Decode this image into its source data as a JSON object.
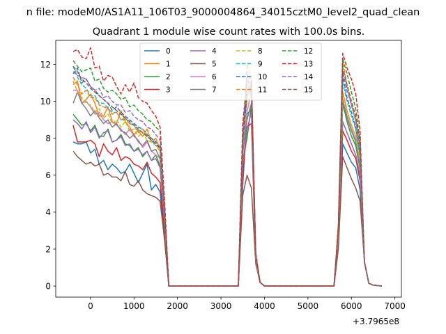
{
  "chart_data": {
    "type": "line",
    "suptitle": "n file: modeM0/AS1A11_106T03_9000004864_34015cztM0_level2_quad_clean",
    "title": "Quadrant 1 module wise count rates with 100.0s bins.",
    "xlabel": "",
    "ylabel": "",
    "offset_label": "+3.7965e8",
    "xlim": [
      -800,
      7150
    ],
    "ylim": [
      -0.6,
      13.3
    ],
    "xticks": [
      0,
      1000,
      2000,
      3000,
      4000,
      5000,
      6000,
      7000
    ],
    "xtick_labels": [
      "0",
      "1000",
      "2000",
      "3000",
      "4000",
      "5000",
      "6000",
      "7000"
    ],
    "yticks": [
      0,
      2,
      4,
      6,
      8,
      10,
      12
    ],
    "ytick_labels": [
      "0",
      "2",
      "4",
      "6",
      "8",
      "10",
      "12"
    ],
    "grid": false,
    "legend_position": "top-center",
    "legend_ncol": 4,
    "segments": [
      {
        "x_start": -400,
        "x_end": 1600,
        "step": 100
      },
      {
        "x_start": 3500,
        "x_end": 3800,
        "step": 100
      },
      {
        "x_start": 5700,
        "x_end": 6200,
        "step": 100
      }
    ],
    "zero_stretches": [
      [
        1800,
        3400
      ],
      [
        4000,
        5600
      ]
    ],
    "tail": {
      "x": [
        6400,
        6700
      ],
      "y": [
        0.1,
        0.0
      ]
    },
    "series": [
      {
        "name": "0",
        "color": "#1f77b4",
        "dashed": false,
        "seg1": [
          7.8,
          7.7,
          7.7,
          7.8,
          7.2,
          7.4,
          6.6,
          6.8,
          6.3,
          6.6,
          6.4,
          6.1,
          6.2,
          6.6,
          6.1,
          5.6,
          6.1,
          6.6,
          5.2,
          5.5,
          5.1
        ],
        "seg2": [
          5.4,
          9.3,
          9.6,
          1.3
        ],
        "seg3": [
          2.2,
          7.7,
          7.2,
          6.7,
          6.4,
          5.2
        ]
      },
      {
        "name": "1",
        "color": "#ff7f0e",
        "dashed": false,
        "seg1": [
          10.9,
          11.1,
          9.9,
          10.1,
          10.4,
          9.9,
          9.2,
          9.2,
          9.7,
          8.9,
          8.8,
          9.5,
          8.9,
          8.6,
          8.2,
          8.4,
          8.1,
          8.5,
          7.8,
          8.0,
          7.4
        ],
        "seg2": [
          7.6,
          10.2,
          10.8,
          1.5
        ],
        "seg3": [
          3.0,
          10.5,
          9.5,
          8.7,
          8.1,
          6.6
        ]
      },
      {
        "name": "2",
        "color": "#2ca02c",
        "dashed": false,
        "seg1": [
          9.3,
          9.0,
          8.7,
          8.8,
          8.4,
          8.7,
          8.1,
          8.1,
          8.5,
          7.8,
          7.9,
          8.2,
          7.7,
          7.6,
          7.3,
          7.5,
          7.0,
          7.3,
          6.8,
          7.1,
          6.5
        ],
        "seg2": [
          6.8,
          8.0,
          9.8,
          1.4
        ],
        "seg3": [
          2.6,
          9.9,
          8.9,
          8.1,
          7.6,
          6.3
        ]
      },
      {
        "name": "3",
        "color": "#d62728",
        "dashed": false,
        "seg1": [
          8.7,
          7.8,
          7.8,
          7.8,
          7.9,
          7.7,
          7.0,
          7.7,
          7.3,
          7.1,
          7.5,
          6.8,
          7.0,
          6.9,
          6.6,
          6.5,
          6.3,
          6.7,
          6.1,
          5.9,
          5.6
        ],
        "seg2": [
          6.0,
          8.6,
          8.8,
          1.3
        ],
        "seg3": [
          2.3,
          8.4,
          7.9,
          7.3,
          6.9,
          5.7
        ]
      },
      {
        "name": "4",
        "color": "#9467bd",
        "dashed": false,
        "seg1": [
          9.0,
          8.8,
          8.5,
          8.9,
          8.3,
          8.6,
          8.0,
          8.3,
          8.4,
          7.8,
          7.9,
          8.1,
          7.6,
          7.7,
          7.3,
          7.4,
          7.1,
          7.3,
          6.8,
          6.9,
          6.4
        ],
        "seg2": [
          6.6,
          8.5,
          9.4,
          1.3
        ],
        "seg3": [
          2.5,
          8.9,
          8.3,
          7.7,
          7.1,
          6.0
        ]
      },
      {
        "name": "5",
        "color": "#8c564b",
        "dashed": false,
        "seg1": [
          7.3,
          7.0,
          6.8,
          6.6,
          6.7,
          6.5,
          6.6,
          6.0,
          6.1,
          5.9,
          5.9,
          5.7,
          6.2,
          5.5,
          5.4,
          5.7,
          5.2,
          5.0,
          4.9,
          4.8,
          4.6
        ],
        "seg2": [
          4.9,
          6.0,
          5.3,
          1.2
        ],
        "seg3": [
          2.0,
          7.0,
          6.4,
          5.8,
          5.3,
          4.6
        ]
      },
      {
        "name": "6",
        "color": "#e377c2",
        "dashed": false,
        "seg1": [
          10.6,
          10.6,
          9.9,
          10.0,
          9.7,
          9.3,
          9.4,
          9.0,
          8.8,
          8.9,
          8.7,
          8.5,
          8.2,
          8.5,
          8.1,
          7.9,
          7.5,
          7.8,
          7.3,
          7.1,
          6.9
        ],
        "seg2": [
          7.3,
          9.4,
          10.6,
          1.5
        ],
        "seg3": [
          2.8,
          10.1,
          9.2,
          8.5,
          7.9,
          6.5
        ]
      },
      {
        "name": "7",
        "color": "#7f7f7f",
        "dashed": false,
        "seg1": [
          9.9,
          10.5,
          9.9,
          9.6,
          9.2,
          9.5,
          9.1,
          8.8,
          9.0,
          8.6,
          8.8,
          8.4,
          8.3,
          8.0,
          8.2,
          7.8,
          7.6,
          7.9,
          7.3,
          7.4,
          6.9
        ],
        "seg2": [
          7.2,
          9.0,
          9.9,
          1.4
        ],
        "seg3": [
          2.7,
          10.0,
          9.1,
          8.4,
          7.8,
          6.4
        ]
      },
      {
        "name": "8",
        "color": "#bcbd22",
        "dashed": true,
        "seg1": [
          11.1,
          10.5,
          10.2,
          9.9,
          9.8,
          9.4,
          9.6,
          9.1,
          9.3,
          8.8,
          9.0,
          8.6,
          8.9,
          8.4,
          8.5,
          8.1,
          8.3,
          7.9,
          7.8,
          7.6,
          7.3
        ],
        "seg2": [
          7.5,
          10.0,
          10.3,
          1.5
        ],
        "seg3": [
          2.9,
          10.3,
          9.4,
          8.7,
          8.1,
          6.7
        ]
      },
      {
        "name": "9",
        "color": "#17becf",
        "dashed": true,
        "seg1": [
          11.9,
          11.3,
          10.9,
          10.7,
          10.3,
          10.3,
          9.9,
          9.9,
          9.6,
          9.4,
          9.4,
          9.0,
          9.1,
          8.8,
          8.7,
          8.4,
          8.5,
          8.1,
          7.9,
          7.6,
          7.5
        ],
        "seg2": [
          7.8,
          10.6,
          11.0,
          1.6
        ],
        "seg3": [
          3.0,
          11.0,
          10.0,
          9.2,
          8.5,
          7.0
        ]
      },
      {
        "name": "10",
        "color": "#1f77b4",
        "dashed": true,
        "seg1": [
          11.5,
          11.8,
          11.0,
          11.2,
          10.8,
          10.6,
          10.3,
          10.1,
          9.9,
          9.5,
          9.7,
          9.4,
          9.2,
          9.0,
          8.8,
          8.6,
          8.5,
          8.2,
          8.0,
          7.8,
          7.5
        ],
        "seg2": [
          7.7,
          10.4,
          10.9,
          1.6
        ],
        "seg3": [
          3.0,
          11.4,
          10.2,
          9.4,
          8.6,
          7.1
        ]
      },
      {
        "name": "11",
        "color": "#ff7f0e",
        "dashed": true,
        "seg1": [
          11.3,
          10.9,
          10.4,
          10.6,
          10.2,
          10.2,
          9.8,
          9.7,
          9.6,
          9.3,
          9.4,
          9.0,
          9.0,
          8.8,
          8.7,
          8.3,
          8.5,
          8.1,
          7.9,
          7.7,
          7.4
        ],
        "seg2": [
          7.6,
          12.0,
          11.3,
          1.6
        ],
        "seg3": [
          3.0,
          12.2,
          10.8,
          9.8,
          8.9,
          7.3
        ]
      },
      {
        "name": "12",
        "color": "#2ca02c",
        "dashed": true,
        "seg1": [
          12.2,
          11.9,
          11.6,
          11.7,
          11.8,
          11.1,
          11.2,
          10.7,
          10.5,
          10.6,
          10.4,
          10.1,
          10.2,
          9.7,
          9.8,
          9.5,
          9.3,
          9.0,
          8.9,
          8.6,
          8.4
        ],
        "seg2": [
          8.6,
          11.3,
          11.2,
          1.7
        ],
        "seg3": [
          3.2,
          12.3,
          11.5,
          10.5,
          9.6,
          7.9
        ]
      },
      {
        "name": "13",
        "color": "#d62728",
        "dashed": true,
        "seg1": [
          12.7,
          12.8,
          12.4,
          12.3,
          12.9,
          11.8,
          11.9,
          11.1,
          11.4,
          11.3,
          10.8,
          10.4,
          10.9,
          10.5,
          11.0,
          10.2,
          10.0,
          9.9,
          9.5,
          9.2,
          8.6
        ],
        "seg2": [
          8.8,
          11.1,
          10.9,
          1.8
        ],
        "seg3": [
          3.3,
          12.6,
          11.8,
          11.2,
          10.4,
          8.4
        ]
      },
      {
        "name": "14",
        "color": "#9467bd",
        "dashed": true,
        "seg1": [
          11.6,
          11.4,
          11.3,
          11.2,
          10.8,
          10.6,
          10.7,
          10.2,
          10.3,
          10.0,
          9.8,
          9.8,
          9.4,
          9.5,
          9.2,
          9.0,
          8.9,
          8.6,
          8.5,
          8.2,
          7.9
        ],
        "seg2": [
          8.1,
          11.6,
          10.3,
          1.6
        ],
        "seg3": [
          3.1,
          11.6,
          10.6,
          9.8,
          9.0,
          7.5
        ]
      },
      {
        "name": "15",
        "color": "#8c564b",
        "dashed": true,
        "seg1": [
          11.9,
          11.6,
          11.2,
          11.0,
          10.7,
          10.5,
          10.3,
          10.1,
          9.9,
          9.7,
          9.5,
          9.3,
          9.1,
          8.9,
          8.7,
          8.5,
          8.3,
          8.1,
          7.9,
          7.7,
          7.5
        ],
        "seg2": [
          7.8,
          10.9,
          11.1,
          1.7
        ],
        "seg3": [
          3.1,
          11.8,
          10.9,
          10.0,
          9.2,
          7.7
        ]
      }
    ]
  }
}
